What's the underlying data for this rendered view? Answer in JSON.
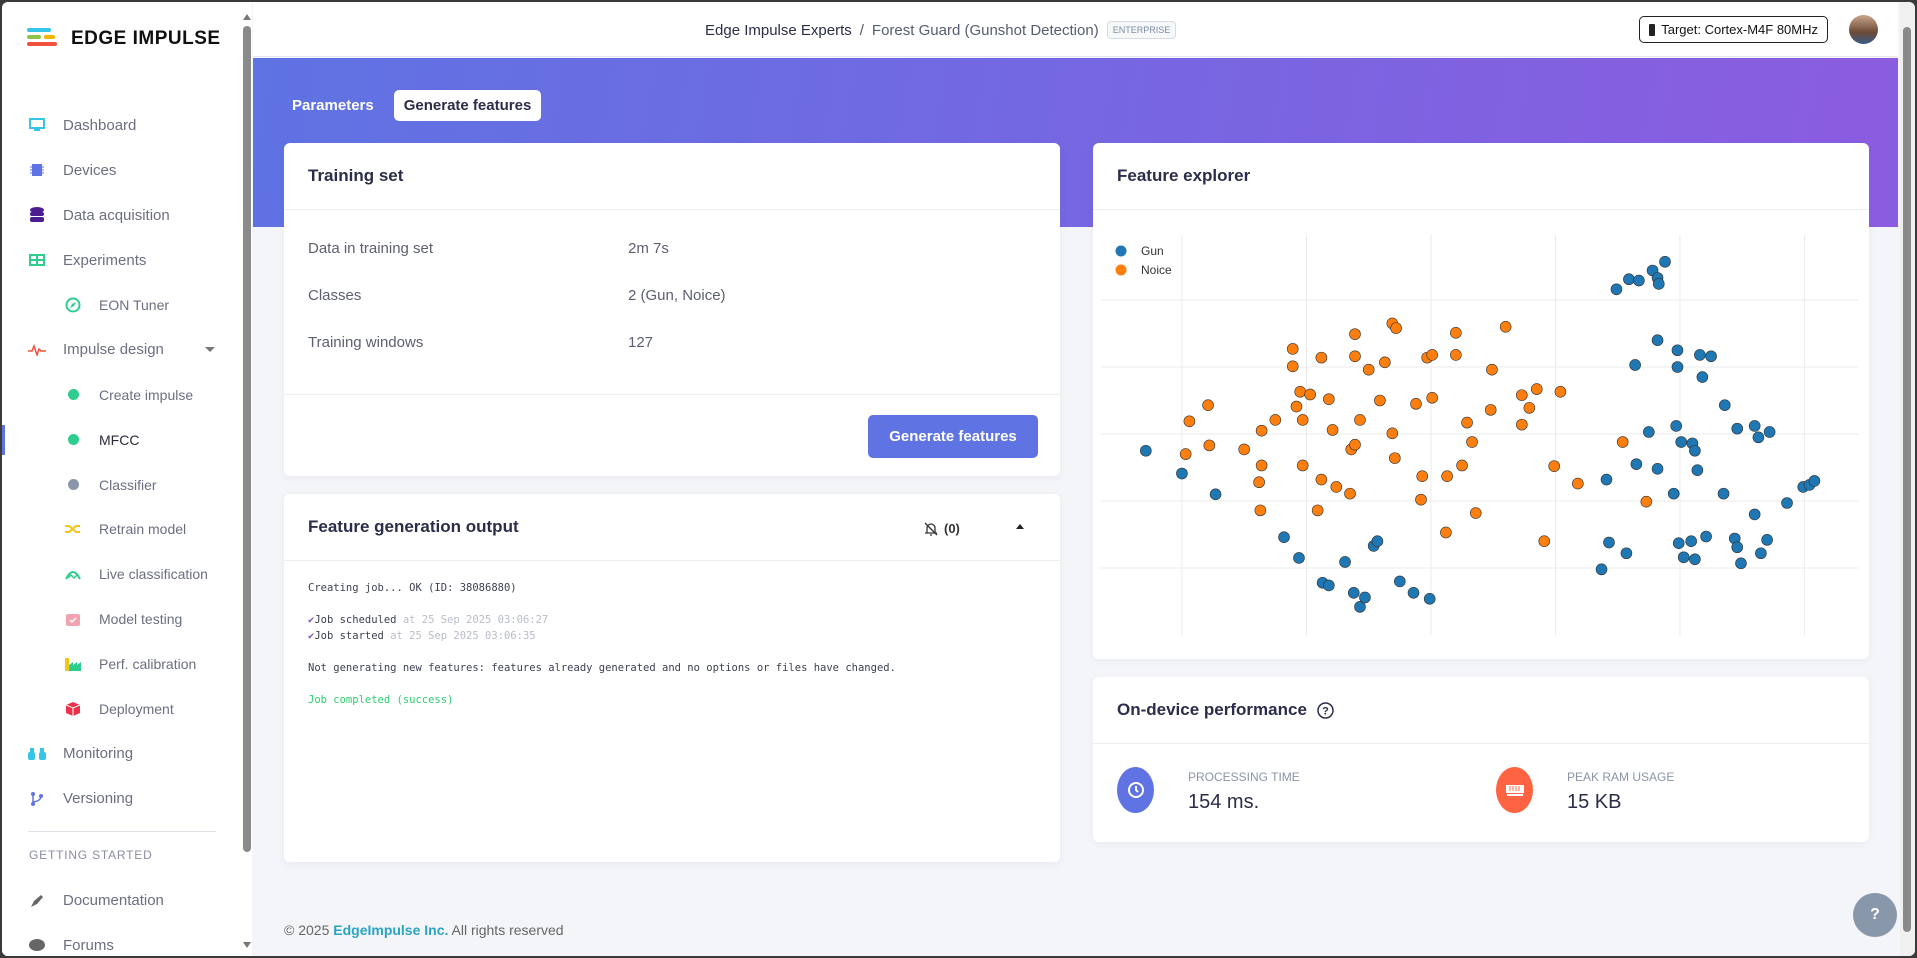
{
  "brand": {
    "name": "EDGE IMPULSE"
  },
  "sidebar": {
    "items": [
      {
        "label": "Dashboard",
        "icon": "monitor-icon",
        "color": "#36c5e8"
      },
      {
        "label": "Devices",
        "icon": "chip-icon",
        "color": "#5f73e3"
      },
      {
        "label": "Data acquisition",
        "icon": "database-icon",
        "color": "#4b1d91"
      },
      {
        "label": "Experiments",
        "icon": "table-icon",
        "color": "#2ecc8e"
      },
      {
        "label": "EON Tuner",
        "icon": "compass-icon",
        "color": "#2ecc8e"
      },
      {
        "label": "Impulse design",
        "icon": "pulse-icon",
        "color": "#f0503c"
      },
      {
        "label": "Create impulse",
        "icon": "dot-icon",
        "color": "#2ecc8e"
      },
      {
        "label": "MFCC",
        "icon": "dot-icon",
        "color": "#2ecc8e"
      },
      {
        "label": "Classifier",
        "icon": "dot-icon",
        "color": "#8a97aa"
      },
      {
        "label": "Retrain model",
        "icon": "shuffle-icon",
        "color": "#f5c518"
      },
      {
        "label": "Live classification",
        "icon": "live-icon",
        "color": "#2ecc8e"
      },
      {
        "label": "Model testing",
        "icon": "clipboard-check-icon",
        "color": "#f2a3b0"
      },
      {
        "label": "Perf. calibration",
        "icon": "factory-icon",
        "color": "#2ecc8e"
      },
      {
        "label": "Deployment",
        "icon": "cube-icon",
        "color": "#e8334a"
      },
      {
        "label": "Monitoring",
        "icon": "binoculars-icon",
        "color": "#36c5e8"
      },
      {
        "label": "Versioning",
        "icon": "branch-icon",
        "color": "#5f73e3"
      }
    ],
    "section_title": "GETTING STARTED",
    "getting_started": [
      {
        "label": "Documentation",
        "icon": "rocket-icon"
      },
      {
        "label": "Forums",
        "icon": "chat-icon"
      }
    ]
  },
  "header": {
    "org": "Edge Impulse Experts",
    "separator": "/",
    "project": "Forest Guard (Gunshot Detection)",
    "badge": "ENTERPRISE",
    "target": "Target: Cortex-M4F 80MHz"
  },
  "tabs": [
    {
      "label": "Parameters"
    },
    {
      "label": "Generate features"
    }
  ],
  "training_set": {
    "title": "Training set",
    "rows": [
      {
        "label": "Data in training set",
        "value": "2m 7s"
      },
      {
        "label": "Classes",
        "value": "2 (Gun, Noice)"
      },
      {
        "label": "Training windows",
        "value": "127"
      }
    ],
    "button": "Generate features"
  },
  "output": {
    "title": "Feature generation output",
    "notifications": "(0)",
    "lines": {
      "creating": "Creating job... OK (ID: 38086880)",
      "scheduled": "Job scheduled",
      "scheduled_at": "at 25 Sep 2025 03:06:27",
      "started": "Job started",
      "started_at": "at 25 Sep 2025 03:06:35",
      "not_generating": "Not generating new features: features already generated and no options or files have changed.",
      "completed": "Job completed (success)"
    }
  },
  "explorer": {
    "title": "Feature explorer"
  },
  "chart_data": {
    "type": "scatter",
    "title": "Feature explorer",
    "xlabel": "",
    "ylabel": "",
    "xlim": [
      -6.5,
      54.3
    ],
    "ylim": [
      -10,
      49.7
    ],
    "x_grid": [
      0,
      10,
      20,
      30,
      40,
      50
    ],
    "y_grid": [
      0,
      10,
      20,
      30,
      40
    ],
    "grid": true,
    "legend": "top-left",
    "series": [
      {
        "name": "Gun",
        "color": "#1f77b4",
        "points": [
          [
            -2.9,
            17.5
          ],
          [
            0,
            14.1
          ],
          [
            2.7,
            11
          ],
          [
            8.2,
            4.6
          ],
          [
            9.4,
            1.5
          ],
          [
            11.3,
            -2.2
          ],
          [
            11.8,
            -2.6
          ],
          [
            13.1,
            0.9
          ],
          [
            13.8,
            -3.7
          ],
          [
            14.3,
            -5.8
          ],
          [
            14.7,
            -4.4
          ],
          [
            15.4,
            3.3
          ],
          [
            15.7,
            4.0
          ],
          [
            17.5,
            -2.0
          ],
          [
            18.6,
            -3.7
          ],
          [
            19.9,
            -4.6
          ],
          [
            34.9,
            41.6
          ],
          [
            35.9,
            43.1
          ],
          [
            36.7,
            42.9
          ],
          [
            37.8,
            44.4
          ],
          [
            38.2,
            43.3
          ],
          [
            38.8,
            45.7
          ],
          [
            38.3,
            42.4
          ],
          [
            36.4,
            30.3
          ],
          [
            38.2,
            34.0
          ],
          [
            39.8,
            32.5
          ],
          [
            39.8,
            30.0
          ],
          [
            41.6,
            31.8
          ],
          [
            42.5,
            31.6
          ],
          [
            41.8,
            28.5
          ],
          [
            43.6,
            24.3
          ],
          [
            44.6,
            20.8
          ],
          [
            46.0,
            21.2
          ],
          [
            47.2,
            20.3
          ],
          [
            46.3,
            19.5
          ],
          [
            41.0,
            18.6
          ],
          [
            40.1,
            18.8
          ],
          [
            39.7,
            21.2
          ],
          [
            37.5,
            20.3
          ],
          [
            41.2,
            17.5
          ],
          [
            41.4,
            14.6
          ],
          [
            38.2,
            14.8
          ],
          [
            36.5,
            15.5
          ],
          [
            39.5,
            11.1
          ],
          [
            43.5,
            11.1
          ],
          [
            46.0,
            8.0
          ],
          [
            48.6,
            9.7
          ],
          [
            49.9,
            12.1
          ],
          [
            50.4,
            12.4
          ],
          [
            50.8,
            13.0
          ],
          [
            34.3,
            3.8
          ],
          [
            35.7,
            2.2
          ],
          [
            33.7,
            -0.2
          ],
          [
            39.9,
            3.7
          ],
          [
            40.9,
            4.0
          ],
          [
            41.2,
            1.3
          ],
          [
            42.1,
            4.7
          ],
          [
            40.3,
            1.6
          ],
          [
            44.4,
            4.4
          ],
          [
            44.6,
            3.1
          ],
          [
            44.9,
            0.7
          ],
          [
            47.0,
            4.2
          ],
          [
            46.5,
            2.2
          ],
          [
            34.1,
            13.2
          ]
        ]
      },
      {
        "name": "Noice",
        "color": "#ff7f0e",
        "points": [
          [
            8.9,
            32.7
          ],
          [
            8.9,
            30.1
          ],
          [
            11.2,
            31.4
          ],
          [
            13.9,
            34.9
          ],
          [
            13.9,
            31.6
          ],
          [
            16.9,
            36.5
          ],
          [
            17.2,
            35.8
          ],
          [
            22.0,
            35.1
          ],
          [
            22.0,
            31.8
          ],
          [
            26.0,
            36.0
          ],
          [
            19.7,
            31.4
          ],
          [
            20.1,
            31.8
          ],
          [
            16.3,
            30.7
          ],
          [
            15.0,
            29.6
          ],
          [
            24.9,
            29.6
          ],
          [
            15.9,
            25.0
          ],
          [
            18.8,
            24.5
          ],
          [
            20.1,
            25.4
          ],
          [
            9.5,
            26.3
          ],
          [
            10.3,
            25.9
          ],
          [
            9.2,
            24.1
          ],
          [
            11.8,
            25.2
          ],
          [
            24.8,
            23.6
          ],
          [
            27.3,
            25.8
          ],
          [
            28.5,
            26.7
          ],
          [
            30.4,
            26.3
          ],
          [
            27.9,
            23.9
          ],
          [
            27.3,
            21.4
          ],
          [
            22.9,
            21.7
          ],
          [
            23.3,
            18.8
          ],
          [
            16.9,
            20.1
          ],
          [
            14.3,
            22.1
          ],
          [
            12.1,
            20.6
          ],
          [
            9.7,
            22.1
          ],
          [
            7.5,
            22.1
          ],
          [
            6.4,
            20.5
          ],
          [
            2.1,
            24.3
          ],
          [
            0.6,
            21.9
          ],
          [
            0.3,
            17.0
          ],
          [
            2.2,
            18.3
          ],
          [
            5.0,
            17.7
          ],
          [
            6.4,
            15.3
          ],
          [
            6.2,
            12.8
          ],
          [
            6.3,
            8.6
          ],
          [
            9.7,
            15.3
          ],
          [
            11.2,
            13.2
          ],
          [
            12.4,
            12.1
          ],
          [
            13.5,
            11.1
          ],
          [
            13.6,
            17.7
          ],
          [
            13.9,
            18.4
          ],
          [
            17.1,
            16.4
          ],
          [
            19.3,
            13.7
          ],
          [
            21.3,
            13.7
          ],
          [
            22.5,
            15.3
          ],
          [
            23.6,
            8.2
          ],
          [
            21.2,
            5.3
          ],
          [
            29.1,
            4.0
          ],
          [
            29.9,
            15.2
          ],
          [
            31.8,
            12.6
          ],
          [
            35.4,
            18.8
          ],
          [
            37.3,
            9.9
          ],
          [
            10.9,
            8.6
          ],
          [
            19.2,
            10.2
          ]
        ]
      }
    ]
  },
  "performance": {
    "title": "On-device performance",
    "processing_label": "PROCESSING TIME",
    "processing_value": "154 ms.",
    "ram_label": "PEAK RAM USAGE",
    "ram_value": "15 KB"
  },
  "footer": {
    "copyright": "© 2025",
    "company": "EdgeImpulse Inc.",
    "rights": "All rights reserved"
  },
  "help": {
    "label": "?"
  }
}
